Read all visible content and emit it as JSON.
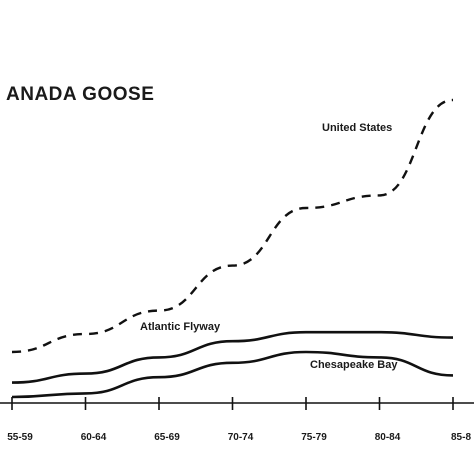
{
  "chart_data": {
    "type": "line",
    "title": "ANADA GOOSE",
    "categories": [
      "55-59",
      "60-64",
      "65-69",
      "70-74",
      "75-79",
      "80-84",
      "85-8"
    ],
    "series": [
      {
        "name": "United States",
        "style": "dashed",
        "values": [
          0.2,
          0.3,
          0.43,
          0.68,
          1.0,
          1.07,
          1.6
        ]
      },
      {
        "name": "Atlantic Flyway",
        "style": "solid",
        "values": [
          0.03,
          0.08,
          0.17,
          0.26,
          0.31,
          0.31,
          0.28
        ]
      },
      {
        "name": "Chesapeake Bay",
        "style": "solid",
        "values": [
          -0.05,
          -0.03,
          0.06,
          0.14,
          0.2,
          0.17,
          0.07
        ]
      }
    ],
    "xlabel": "",
    "ylabel": "",
    "colors": {
      "lines": "#111111",
      "background": "#ffffff"
    }
  }
}
